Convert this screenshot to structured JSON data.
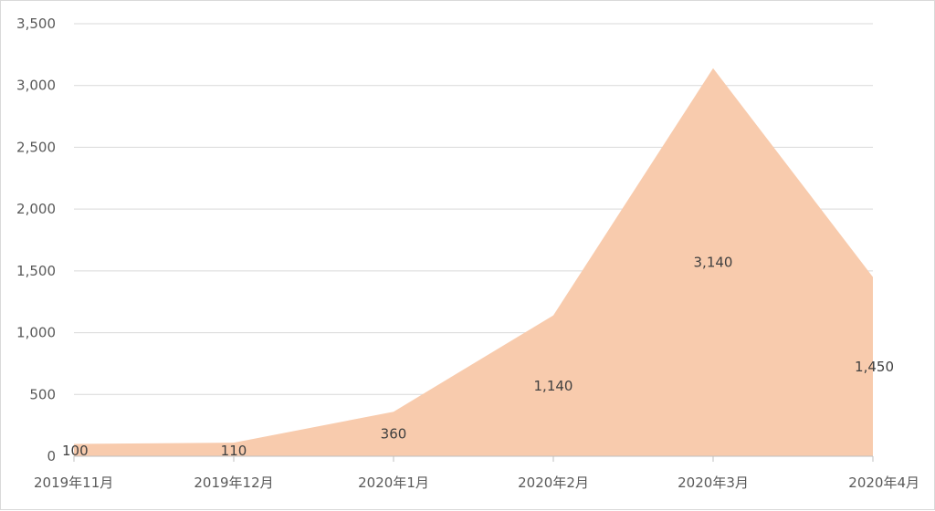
{
  "chart_data": {
    "type": "area",
    "categories": [
      "2019年11月",
      "2019年12月",
      "2020年1月",
      "2020年2月",
      "2020年3月",
      "2020年4月"
    ],
    "values": [
      100,
      110,
      360,
      1140,
      3140,
      1450
    ],
    "data_labels": [
      "100",
      "110",
      "360",
      "1,140",
      "3,140",
      "1,450"
    ],
    "y_ticks": [
      "0",
      "500",
      "1,000",
      "1,500",
      "2,000",
      "2,500",
      "3,000",
      "3,500"
    ],
    "y_tick_values": [
      0,
      500,
      1000,
      1500,
      2000,
      2500,
      3000,
      3500
    ],
    "ylim": [
      0,
      3500
    ],
    "grid": true,
    "colors": {
      "area": "#f8cbad",
      "grid": "#d9d9d9",
      "axis": "#bfbfbf"
    }
  }
}
